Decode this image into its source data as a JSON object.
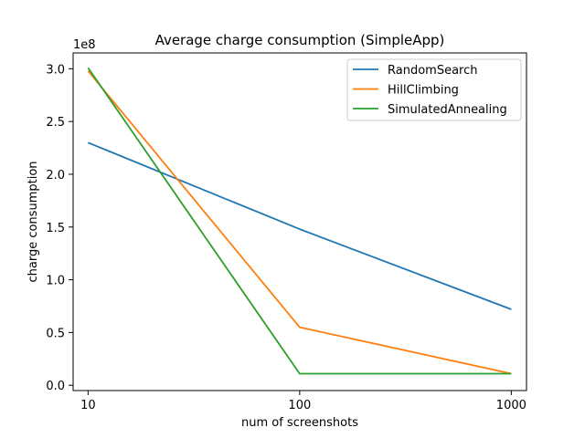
{
  "chart_data": {
    "type": "line",
    "title": "Average charge consumption (SimpleApp)",
    "xlabel": "num of screenshots",
    "ylabel": "charge consumption",
    "y_offset_label": "1e8",
    "x_scale": "log",
    "x": [
      10,
      100,
      1000
    ],
    "x_tick_labels": [
      "10",
      "100",
      "1000"
    ],
    "xlim": [
      8.5,
      1180
    ],
    "ylim": [
      -0.05,
      3.15
    ],
    "y_ticks": [
      0.0,
      0.5,
      1.0,
      1.5,
      2.0,
      2.5,
      3.0
    ],
    "y_tick_labels": [
      "0.0",
      "0.5",
      "1.0",
      "1.5",
      "2.0",
      "2.5",
      "3.0"
    ],
    "grid": false,
    "legend_position": "top-right",
    "series": [
      {
        "name": "RandomSearch",
        "color": "#1f77b4",
        "values": [
          2.3,
          1.48,
          0.72
        ]
      },
      {
        "name": "HillClimbing",
        "color": "#ff7f0e",
        "values": [
          2.98,
          0.55,
          0.11
        ]
      },
      {
        "name": "SimulatedAnnealing",
        "color": "#2ca02c",
        "values": [
          3.01,
          0.11,
          0.11
        ]
      }
    ]
  }
}
